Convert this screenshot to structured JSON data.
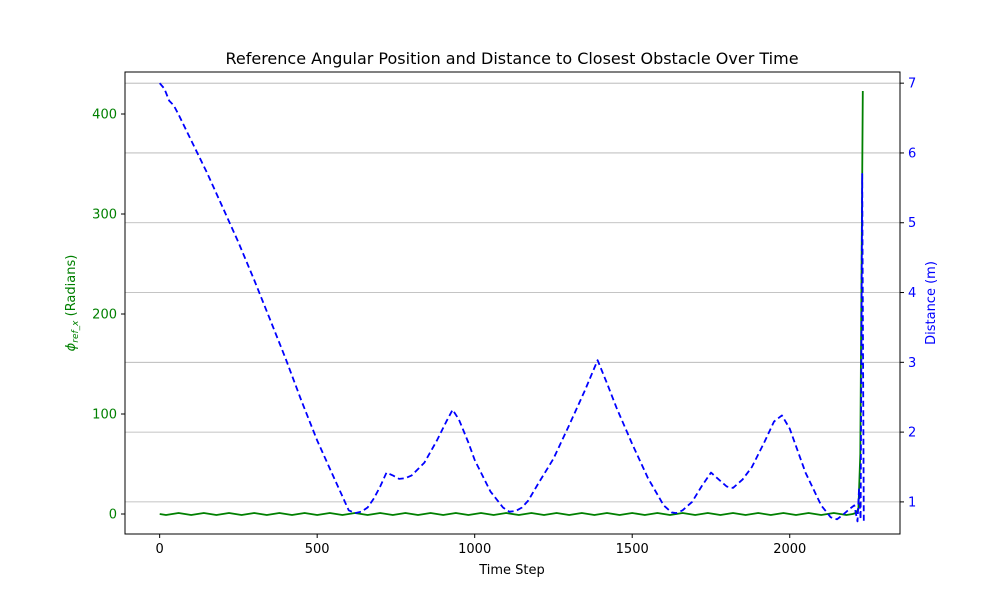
{
  "chart_data": {
    "type": "line",
    "title": "Reference Angular Position and Distance to Closest Obstacle Over Time",
    "xlabel": "Time Step",
    "ylabel_left_main": "ϕ",
    "ylabel_left_sub": "ref_x",
    "ylabel_left_suffix": " (Radians)",
    "ylabel_right": "Distance (m)",
    "xlim": [
      -110,
      2350
    ],
    "ylim_left": [
      -20,
      442
    ],
    "ylim_right": [
      0.54,
      7.16
    ],
    "xticks": [
      0,
      500,
      1000,
      1500,
      2000
    ],
    "yticks_left": [
      0,
      100,
      200,
      300,
      400
    ],
    "yticks_right": [
      1,
      2,
      3,
      4,
      5,
      6,
      7
    ],
    "grid": "right-axis horizontal",
    "colors": {
      "left": "#008000",
      "right": "#0000ff",
      "grid": "#b0b0b0"
    },
    "series": [
      {
        "axis": "left",
        "style": "solid",
        "x": [
          0,
          20,
          60,
          100,
          140,
          180,
          220,
          260,
          300,
          340,
          380,
          420,
          460,
          500,
          540,
          580,
          620,
          660,
          700,
          740,
          780,
          820,
          860,
          900,
          940,
          980,
          1020,
          1060,
          1100,
          1140,
          1180,
          1220,
          1260,
          1300,
          1340,
          1380,
          1420,
          1460,
          1500,
          1540,
          1580,
          1620,
          1660,
          1700,
          1740,
          1780,
          1820,
          1860,
          1900,
          1940,
          1980,
          2020,
          2060,
          2100,
          2140,
          2180,
          2200,
          2210,
          2218,
          2224,
          2228,
          2232
        ],
        "values": [
          0,
          -1,
          1,
          -1,
          1,
          -1,
          1,
          -1,
          1,
          -1,
          1,
          -1,
          1,
          -1,
          1,
          -1,
          1,
          -1,
          1,
          -1,
          1,
          -1,
          1,
          -1,
          1,
          -1,
          1,
          -1,
          1,
          -1,
          1,
          -1,
          1,
          -1,
          1,
          -1,
          1,
          -1,
          1,
          -1,
          1,
          -1,
          1,
          -1,
          1,
          -1,
          1,
          -1,
          1,
          -1,
          1,
          -1,
          1,
          -1,
          1,
          -1,
          0,
          1,
          5,
          60,
          250,
          423
        ]
      },
      {
        "axis": "right",
        "style": "dashed",
        "x": [
          0,
          15,
          30,
          45,
          60,
          100,
          150,
          200,
          250,
          300,
          350,
          400,
          450,
          500,
          550,
          580,
          600,
          620,
          640,
          660,
          680,
          700,
          720,
          740,
          760,
          780,
          800,
          840,
          880,
          910,
          930,
          950,
          980,
          1000,
          1050,
          1090,
          1110,
          1130,
          1150,
          1170,
          1200,
          1250,
          1300,
          1350,
          1390,
          1420,
          1450,
          1500,
          1550,
          1600,
          1625,
          1640,
          1660,
          1690,
          1720,
          1750,
          1770,
          1800,
          1820,
          1850,
          1880,
          1920,
          1950,
          1975,
          2000,
          2050,
          2100,
          2130,
          2150,
          2170,
          2190,
          2205,
          2215,
          2220,
          2225,
          2230,
          2235
        ],
        "values": [
          7.0,
          6.92,
          6.75,
          6.68,
          6.55,
          6.18,
          5.72,
          5.22,
          4.72,
          4.18,
          3.62,
          3.05,
          2.45,
          1.88,
          1.38,
          1.08,
          0.88,
          0.84,
          0.86,
          0.92,
          1.05,
          1.22,
          1.42,
          1.38,
          1.33,
          1.34,
          1.38,
          1.56,
          1.88,
          2.15,
          2.32,
          2.18,
          1.85,
          1.6,
          1.15,
          0.92,
          0.86,
          0.87,
          0.92,
          1.02,
          1.25,
          1.62,
          2.1,
          2.6,
          3.03,
          2.7,
          2.35,
          1.83,
          1.34,
          0.95,
          0.85,
          0.84,
          0.88,
          1.0,
          1.22,
          1.42,
          1.34,
          1.22,
          1.2,
          1.32,
          1.5,
          1.86,
          2.15,
          2.24,
          2.05,
          1.42,
          0.95,
          0.78,
          0.75,
          0.82,
          0.9,
          0.95,
          0.72,
          1.18,
          0.75,
          5.7,
          0.72
        ]
      }
    ]
  }
}
